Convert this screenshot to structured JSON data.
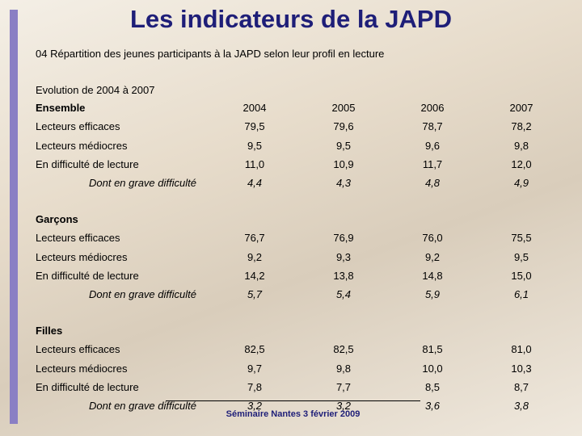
{
  "header": {
    "title": "Les indicateurs de la JAPD",
    "subtitle": "04 Répartition des jeunes participants à la JAPD selon leur profil en lecture"
  },
  "table": {
    "caption": "Evolution de 2004 à 2007",
    "columns": [
      "2004",
      "2005",
      "2006",
      "2007"
    ],
    "sections": [
      {
        "name": "Ensemble",
        "rows": [
          {
            "label": "Lecteurs efficaces",
            "values": [
              "79,5",
              "79,6",
              "78,7",
              "78,2"
            ]
          },
          {
            "label": "Lecteurs médiocres",
            "values": [
              "9,5",
              "9,5",
              "9,6",
              "9,8"
            ]
          },
          {
            "label": "En difficulté de lecture",
            "values": [
              "11,0",
              "10,9",
              "11,7",
              "12,0"
            ]
          },
          {
            "label": "Dont en grave difficulté",
            "values": [
              "4,4",
              "4,3",
              "4,8",
              "4,9"
            ]
          }
        ]
      },
      {
        "name": "Garçons",
        "rows": [
          {
            "label": "Lecteurs efficaces",
            "values": [
              "76,7",
              "76,9",
              "76,0",
              "75,5"
            ]
          },
          {
            "label": "Lecteurs médiocres",
            "values": [
              "9,2",
              "9,3",
              "9,2",
              "9,5"
            ]
          },
          {
            "label": "En difficulté de lecture",
            "values": [
              "14,2",
              "13,8",
              "14,8",
              "15,0"
            ]
          },
          {
            "label": "Dont en grave difficulté",
            "values": [
              "5,7",
              "5,4",
              "5,9",
              "6,1"
            ]
          }
        ]
      },
      {
        "name": "Filles",
        "rows": [
          {
            "label": "Lecteurs efficaces",
            "values": [
              "82,5",
              "82,5",
              "81,5",
              "81,0"
            ]
          },
          {
            "label": "Lecteurs médiocres",
            "values": [
              "9,7",
              "9,8",
              "10,0",
              "10,3"
            ]
          },
          {
            "label": "En difficulté de lecture",
            "values": [
              "7,8",
              "7,7",
              "8,5",
              "8,7"
            ]
          },
          {
            "label": "Dont en grave difficulté",
            "values": [
              "3,2",
              "3,2",
              "3,6",
              "3,8"
            ]
          }
        ]
      }
    ]
  },
  "footer": {
    "text": "Séminaire Nantes 3 février 2009"
  }
}
